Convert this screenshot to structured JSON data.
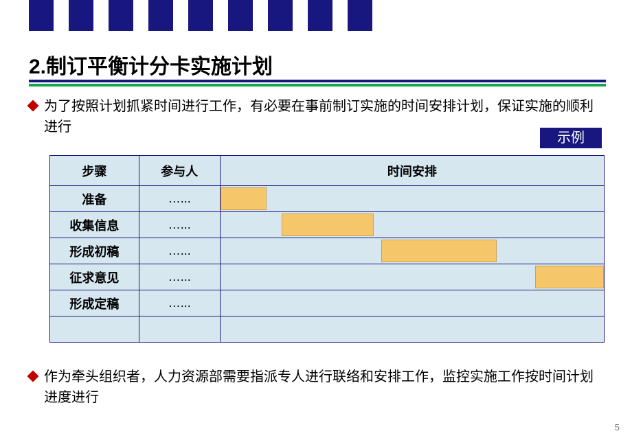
{
  "decor": {
    "top_bar_count": 9,
    "top_bar_color": "#18177f"
  },
  "title": "2.制订平衡计分卡实施计划",
  "divider": {
    "navy": "#18177f",
    "green": "#14a84a"
  },
  "bullets": {
    "b1": "为了按照计划抓紧时间进行工作，有必要在事前制订实施的时间安排计划，保证实施的顺利进行",
    "b2": "作为牵头组织者，人力资源部需要指派专人进行联络和安排工作，监控实施工作按时间计划进度进行"
  },
  "example_tag": "示例",
  "gantt": {
    "headers": {
      "step": "步骤",
      "participant": "参与人",
      "time": "时间安排"
    },
    "cell_bg": "#d6e7f0",
    "border_color": "#1a1a7a",
    "bar_color": "#f6c76a",
    "bar_border": "#c8a24e",
    "rows": [
      {
        "step": "准备",
        "participant": "…...",
        "bar_start_pct": 0,
        "bar_width_pct": 12
      },
      {
        "step": "收集信息",
        "participant": "…...",
        "bar_start_pct": 16,
        "bar_width_pct": 24
      },
      {
        "step": "形成初稿",
        "participant": "…...",
        "bar_start_pct": 42,
        "bar_width_pct": 30
      },
      {
        "step": "征求意见",
        "participant": "…...",
        "bar_start_pct": 82,
        "bar_width_pct": 18
      },
      {
        "step": "形成定稿",
        "participant": "…...",
        "bar_start_pct": null,
        "bar_width_pct": null
      }
    ],
    "trailing_empty_row": true
  },
  "page_number": "5"
}
